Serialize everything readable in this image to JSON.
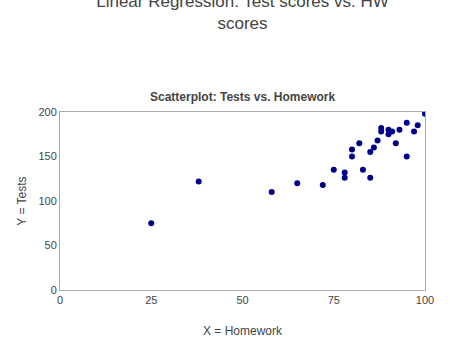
{
  "chart_data": {
    "type": "scatter",
    "title": "Linear Regression: Test scores vs. HW\nscores",
    "subtitle": "Scatterplot: Tests vs. Homework",
    "xlabel": "X = Homework",
    "ylabel": "Y = Tests",
    "xlim": [
      0,
      100
    ],
    "ylim": [
      0,
      200
    ],
    "xticks": [
      0,
      25,
      50,
      75,
      100
    ],
    "yticks": [
      0,
      50,
      100,
      150,
      200
    ],
    "grid": false,
    "color": "#00008B",
    "x": [
      25,
      38,
      58,
      65,
      72,
      75,
      78,
      78,
      80,
      80,
      82,
      83,
      85,
      85,
      86,
      87,
      88,
      88,
      90,
      90,
      91,
      92,
      93,
      95,
      95,
      97,
      98,
      100
    ],
    "values": [
      75,
      122,
      110,
      120,
      118,
      135,
      132,
      126,
      150,
      158,
      165,
      135,
      155,
      126,
      160,
      168,
      178,
      182,
      175,
      180,
      178,
      165,
      180,
      188,
      150,
      178,
      185,
      198
    ]
  }
}
